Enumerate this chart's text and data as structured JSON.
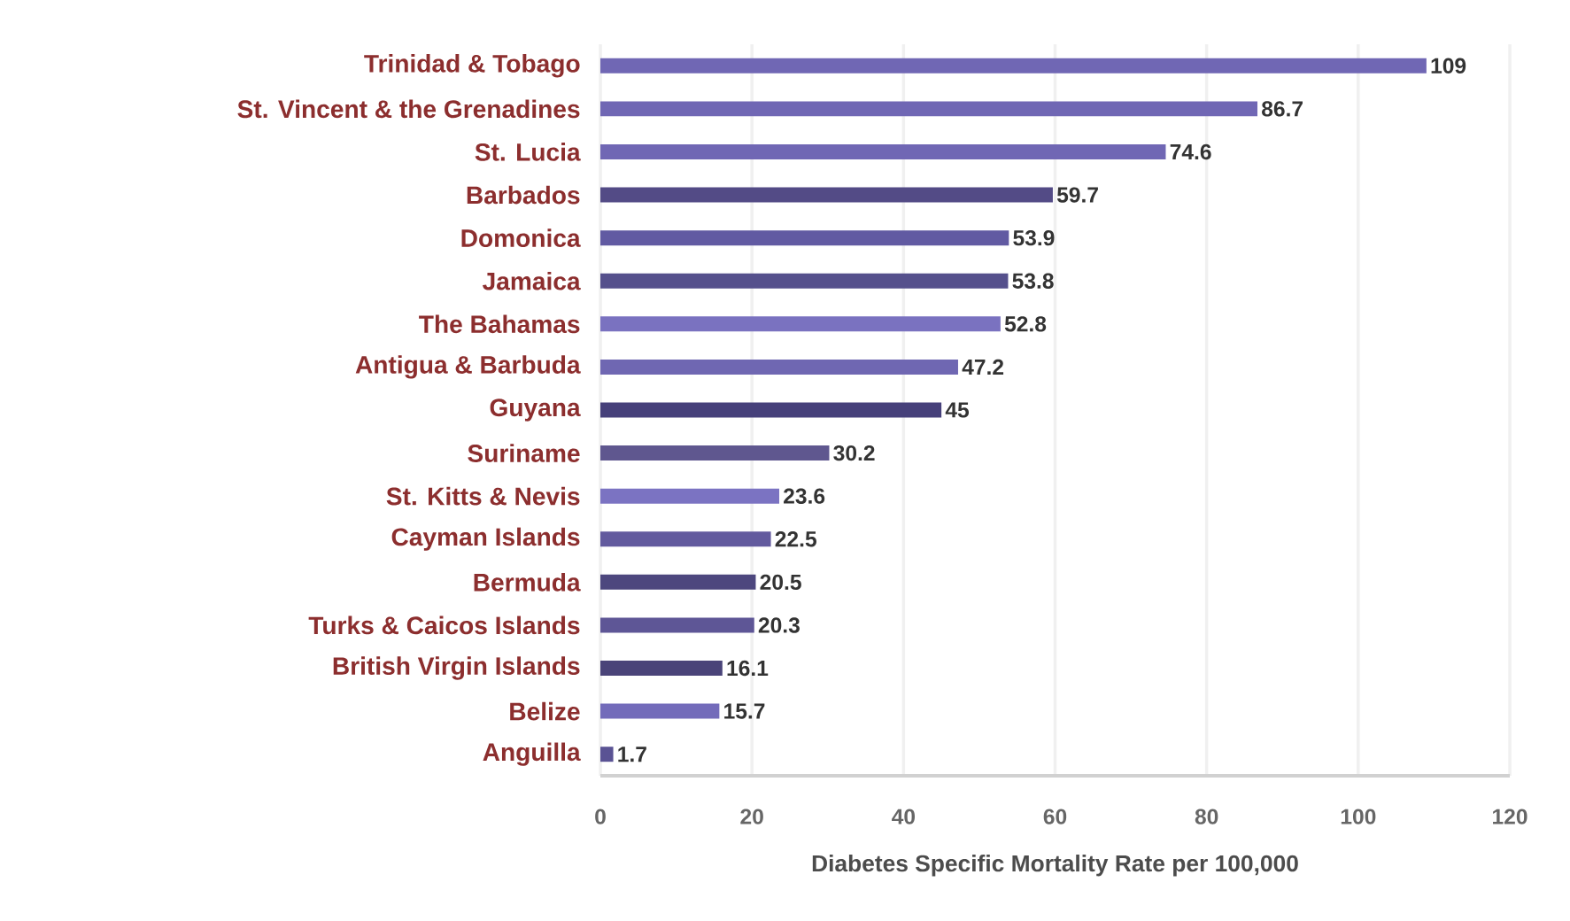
{
  "chart_data": {
    "type": "bar",
    "orientation": "horizontal",
    "xlabel": "Diabetes Specific Mortality Rate per 100,000",
    "categories": [
      "Trinidad & Tobago",
      "St. Vincent & the Grenadines",
      "St. Lucia",
      "Barbados",
      "Domonica",
      "Jamaica",
      "The Bahamas",
      "Antigua & Barbuda",
      "Guyana",
      "Suriname",
      "St. Kitts & Nevis",
      "Cayman Islands",
      "Bermuda",
      "Turks & Caicos Islands",
      "British Virgin Islands",
      "Belize",
      "Anguilla"
    ],
    "values": [
      109,
      86.7,
      74.6,
      59.7,
      53.9,
      53.8,
      52.8,
      47.2,
      45,
      30.2,
      23.6,
      22.5,
      20.5,
      20.3,
      16.1,
      15.7,
      1.7
    ],
    "colors": [
      "#7067b4",
      "#7067b4",
      "#7067b4",
      "#534b86",
      "#615aa2",
      "#55508c",
      "#7a72c0",
      "#6f67b2",
      "#46407a",
      "#5f578f",
      "#7b73c2",
      "#625a9e",
      "#4d477e",
      "#5e5696",
      "#4a4479",
      "#736bba",
      "#5a5394"
    ],
    "xlim": [
      0,
      120
    ],
    "xticks": [
      0,
      20,
      40,
      60,
      80,
      100,
      120
    ],
    "grid": "x",
    "data_labels": true
  }
}
